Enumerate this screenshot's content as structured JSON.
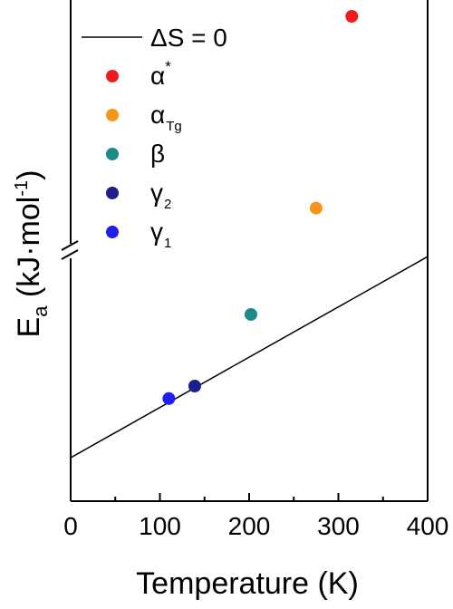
{
  "chart_data": {
    "type": "scatter",
    "xlabel": "Temperature (K)",
    "ylabel": {
      "main": "E",
      "sub": "a",
      "unit_open": " (kJ·mol",
      "unit_sup": "-1",
      "unit_close": ")"
    },
    "xlim": [
      0,
      400
    ],
    "ylim": [
      0,
      1
    ],
    "xticks": [
      "0",
      "100",
      "200",
      "300",
      "400"
    ],
    "y_axis_break": true,
    "grid": false,
    "legend_position": "top-left",
    "series": [
      {
        "name": "ΔS = 0",
        "type": "line",
        "color": "#000000",
        "x": [
          0,
          400
        ],
        "y": [
          0.045,
          0.48
        ]
      },
      {
        "name": "α*",
        "label_base": "α",
        "label_sup": "*",
        "color": "#ee1c1c",
        "x": [
          315
        ],
        "y": [
          1.0
        ]
      },
      {
        "name": "αTg",
        "label_base": "α",
        "label_sub": "Tg",
        "color": "#f7941d",
        "x": [
          275
        ],
        "y": [
          0.585
        ]
      },
      {
        "name": "β",
        "label_base": "β",
        "color": "#1b8b88",
        "x": [
          202
        ],
        "y": [
          0.355
        ]
      },
      {
        "name": "γ2",
        "label_base": "γ",
        "label_sub": "2",
        "color": "#1b1e8c",
        "x": [
          139
        ],
        "y": [
          0.2
        ]
      },
      {
        "name": "γ1",
        "label_base": "γ",
        "label_sub": "1",
        "color": "#1f1fee",
        "x": [
          110
        ],
        "y": [
          0.173
        ]
      }
    ]
  }
}
